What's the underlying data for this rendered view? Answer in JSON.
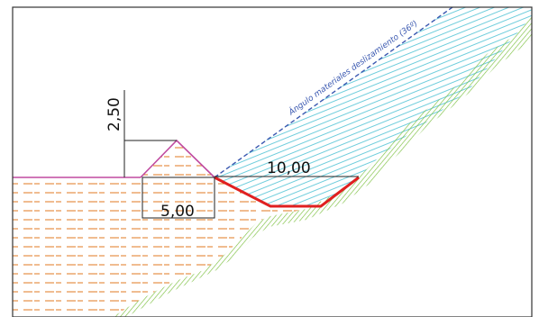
{
  "labels": {
    "height": "2,50",
    "base_width": "5,00",
    "trench_width": "10,00",
    "slide_angle": "Ángulo materiales deslizamiento (36º)"
  },
  "colors": {
    "frame": "#333333",
    "dim_line": "#222222",
    "fill_hatch": "#e07820",
    "slope_hatch": "#5ec8d8",
    "ground_hatch": "#7cc040",
    "berm_outline": "#c04aa0",
    "trench_outline": "#e02020",
    "angle_line": "#3a58b0"
  }
}
